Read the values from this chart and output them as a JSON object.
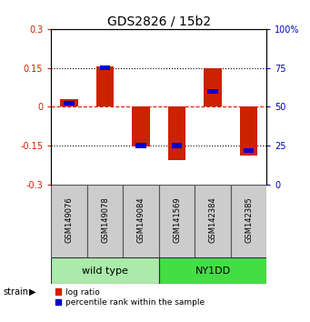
{
  "title": "GDS2826 / 15b2",
  "samples": [
    "GSM149076",
    "GSM149078",
    "GSM149084",
    "GSM141569",
    "GSM142384",
    "GSM142385"
  ],
  "log_ratios": [
    0.03,
    0.155,
    -0.155,
    -0.205,
    0.148,
    -0.19
  ],
  "percentile_ranks": [
    52,
    75,
    25,
    25,
    60,
    22
  ],
  "groups": [
    {
      "label": "wild type",
      "indices": [
        0,
        1,
        2
      ],
      "color": "#AAEAAA"
    },
    {
      "label": "NY1DD",
      "indices": [
        3,
        4,
        5
      ],
      "color": "#44DD44"
    }
  ],
  "ylim_left": [
    -0.3,
    0.3
  ],
  "ylim_right": [
    0,
    100
  ],
  "yticks_left": [
    -0.3,
    -0.15,
    0,
    0.15,
    0.3
  ],
  "yticks_right": [
    0,
    25,
    50,
    75,
    100
  ],
  "ytick_labels_left": [
    "-0.3",
    "-0.15",
    "0",
    "0.15",
    "0.3"
  ],
  "ytick_labels_right": [
    "0",
    "25",
    "50",
    "75",
    "100%"
  ],
  "bar_color_red": "#CC2200",
  "bar_color_blue": "#0000CC",
  "bar_width": 0.5,
  "blue_bar_width": 0.3,
  "blue_bar_height": 0.018,
  "strain_label": "strain",
  "legend_red": "log ratio",
  "legend_blue": "percentile rank within the sample",
  "title_fontsize": 10,
  "tick_fontsize": 7,
  "sample_fontsize": 6,
  "group_fontsize": 8
}
